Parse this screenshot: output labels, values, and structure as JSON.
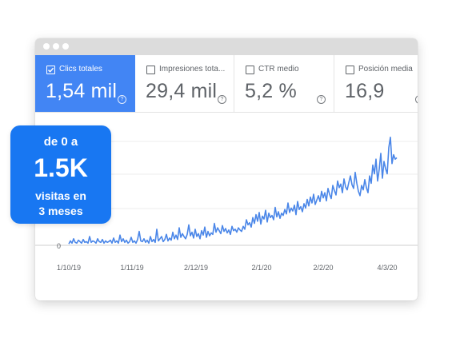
{
  "window": {
    "titlebar_dots": 3
  },
  "metrics": [
    {
      "label": "Clics totales",
      "value": "1,54 mil",
      "active": true
    },
    {
      "label": "Impresiones tota...",
      "value": "29,4 mil",
      "active": false
    },
    {
      "label": "CTR medio",
      "value": "5,2 %",
      "active": false
    },
    {
      "label": "Posición media",
      "value": "16,9",
      "active": false
    }
  ],
  "help_glyph": "?",
  "colors": {
    "accent": "#4285f4",
    "badge": "#1877f2",
    "line": "#4a86e8"
  },
  "badge": {
    "line1": "de 0 a",
    "line2": "1.5K",
    "line3a": "visitas en",
    "line3b": "3 meses"
  },
  "chart_data": {
    "type": "line",
    "ylabel_tick": "0",
    "x_ticks": [
      "1/10/19",
      "1/11/19",
      "2/12/19",
      "2/1/20",
      "2/2/20",
      "4/3/20"
    ],
    "series": [
      {
        "name": "",
        "values": [
          2,
          6,
          3,
          9,
          4,
          3,
          7,
          5,
          3,
          8,
          4,
          5,
          3,
          12,
          4,
          6,
          5,
          3,
          9,
          5,
          4,
          8,
          3,
          6,
          4,
          5,
          7,
          3,
          10,
          4,
          6,
          3,
          14,
          5,
          9,
          4,
          7,
          3,
          5,
          11,
          4,
          6,
          3,
          8,
          19,
          6,
          5,
          9,
          4,
          7,
          3,
          12,
          5,
          8,
          4,
          22,
          6,
          9,
          12,
          5,
          8,
          15,
          6,
          10,
          7,
          18,
          9,
          14,
          8,
          24,
          11,
          16,
          12,
          9,
          15,
          28,
          13,
          18,
          10,
          22,
          12,
          16,
          9,
          20,
          14,
          25,
          11,
          19,
          13,
          17,
          15,
          30,
          18,
          24,
          20,
          16,
          27,
          19,
          23,
          17,
          21,
          15,
          26,
          20,
          22,
          18,
          24,
          21,
          19,
          26,
          22,
          35,
          28,
          31,
          25,
          38,
          30,
          42,
          33,
          45,
          29,
          40,
          36,
          48,
          32,
          44,
          38,
          41,
          35,
          52,
          39,
          46,
          37,
          44,
          41,
          49,
          43,
          58,
          45,
          51,
          47,
          55,
          42,
          60,
          49,
          53,
          46,
          57,
          51,
          63,
          54,
          66,
          58,
          70,
          56,
          62,
          68,
          60,
          74,
          65,
          72,
          61,
          78,
          70,
          64,
          82,
          75,
          69,
          88,
          79,
          84,
          72,
          91,
          80,
          76,
          86,
          95,
          83,
          78,
          100,
          85,
          74,
          68,
          82,
          76,
          90,
          79,
          72,
          95,
          85,
          110,
          98,
          118,
          88,
          104,
          126,
          92,
          115,
          105,
          98,
          134,
          148,
          112,
          124,
          118,
          120
        ]
      }
    ]
  }
}
